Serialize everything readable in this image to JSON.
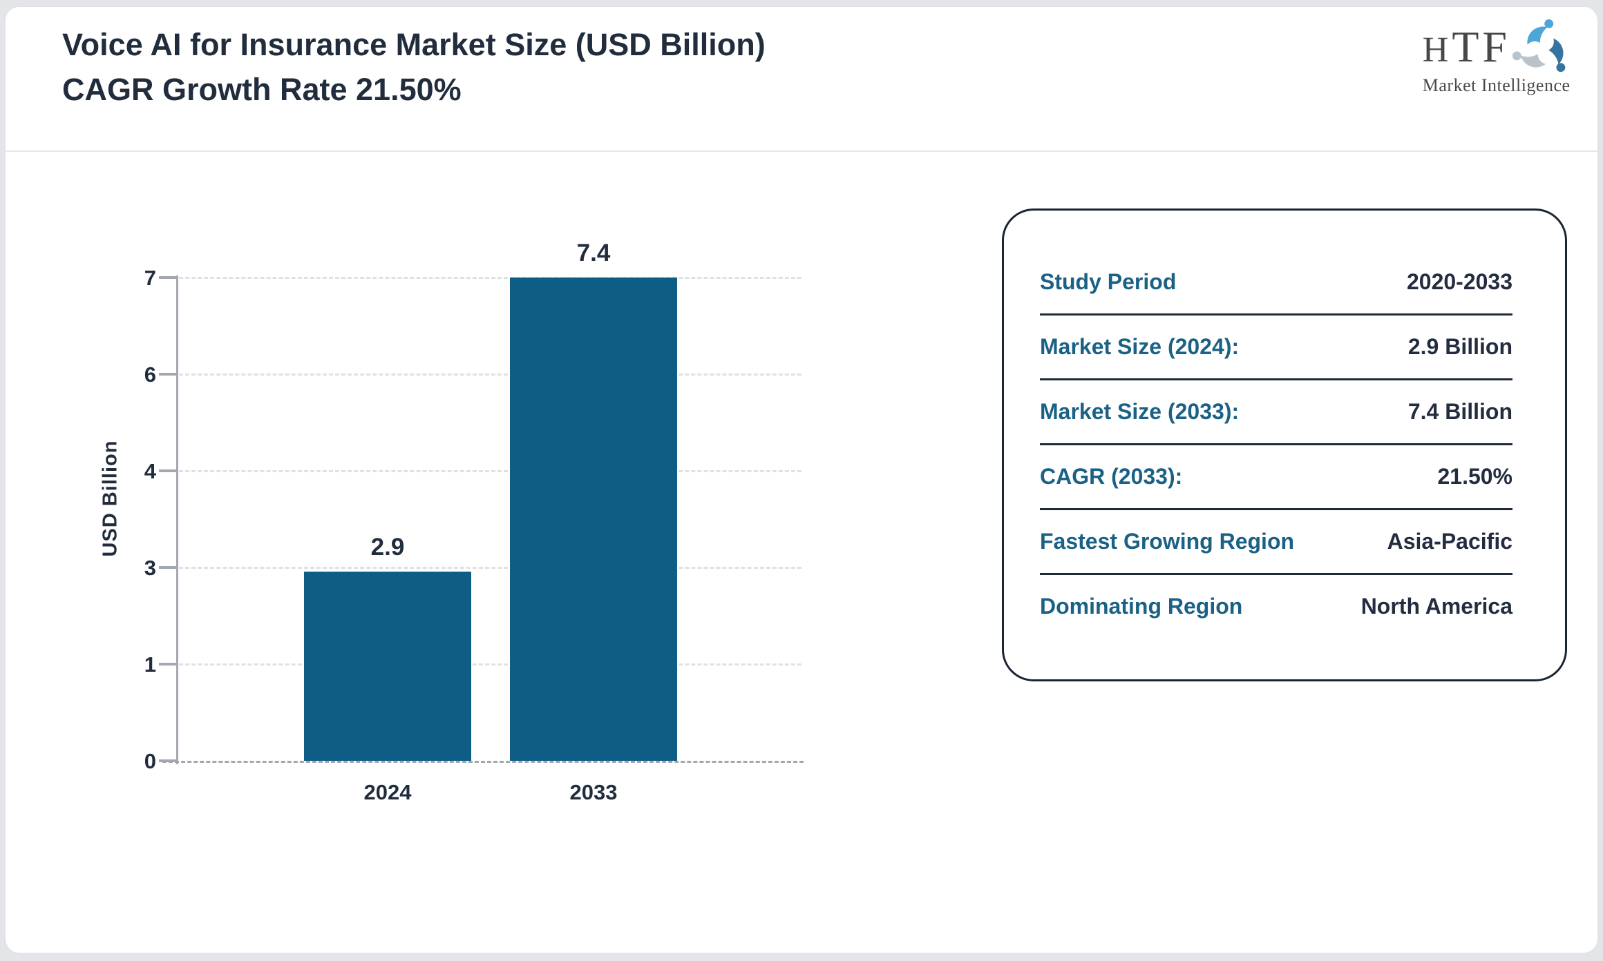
{
  "header": {
    "title_line1": "Voice AI for Insurance Market Size (USD Billion)",
    "title_line2": "CAGR Growth Rate 21.50%"
  },
  "logo": {
    "name": "HTF",
    "tagline": "Market Intelligence"
  },
  "chart_data": {
    "type": "bar",
    "title": "Voice AI for Insurance Market Size (USD Billion) CAGR Growth Rate 21.50%",
    "categories": [
      "2024",
      "2033"
    ],
    "values": [
      2.9,
      7.4
    ],
    "data_labels": [
      "2.9",
      "7.4"
    ],
    "xlabel": "",
    "ylabel": "USD Billion",
    "ylim": [
      0,
      7.4
    ],
    "ytick_labels_bottom_to_top": [
      "0",
      "1",
      "3",
      "4",
      "6",
      "7"
    ],
    "grid": "horizontal dashed",
    "legend": "none",
    "bar_color": "#0d5d84"
  },
  "info_panel": {
    "rows": [
      {
        "label": "Study Period",
        "value": "2020-2033"
      },
      {
        "label": "Market Size (2024):",
        "value": "2.9 Billion"
      },
      {
        "label": "Market Size (2033):",
        "value": "7.4 Billion"
      },
      {
        "label": "CAGR (2033):",
        "value": "21.50%"
      },
      {
        "label": "Fastest Growing Region",
        "value": "Asia-Pacific"
      },
      {
        "label": "Dominating Region",
        "value": "North America"
      }
    ]
  },
  "colors": {
    "accent_teal": "#1a6185",
    "bar": "#0d5d84",
    "text_navy": "#212d3d",
    "panel_border": "#1a2433",
    "gridline": "#e0e1e4",
    "axis": "#a3a8b0",
    "page_background": "#e4e5e9"
  }
}
